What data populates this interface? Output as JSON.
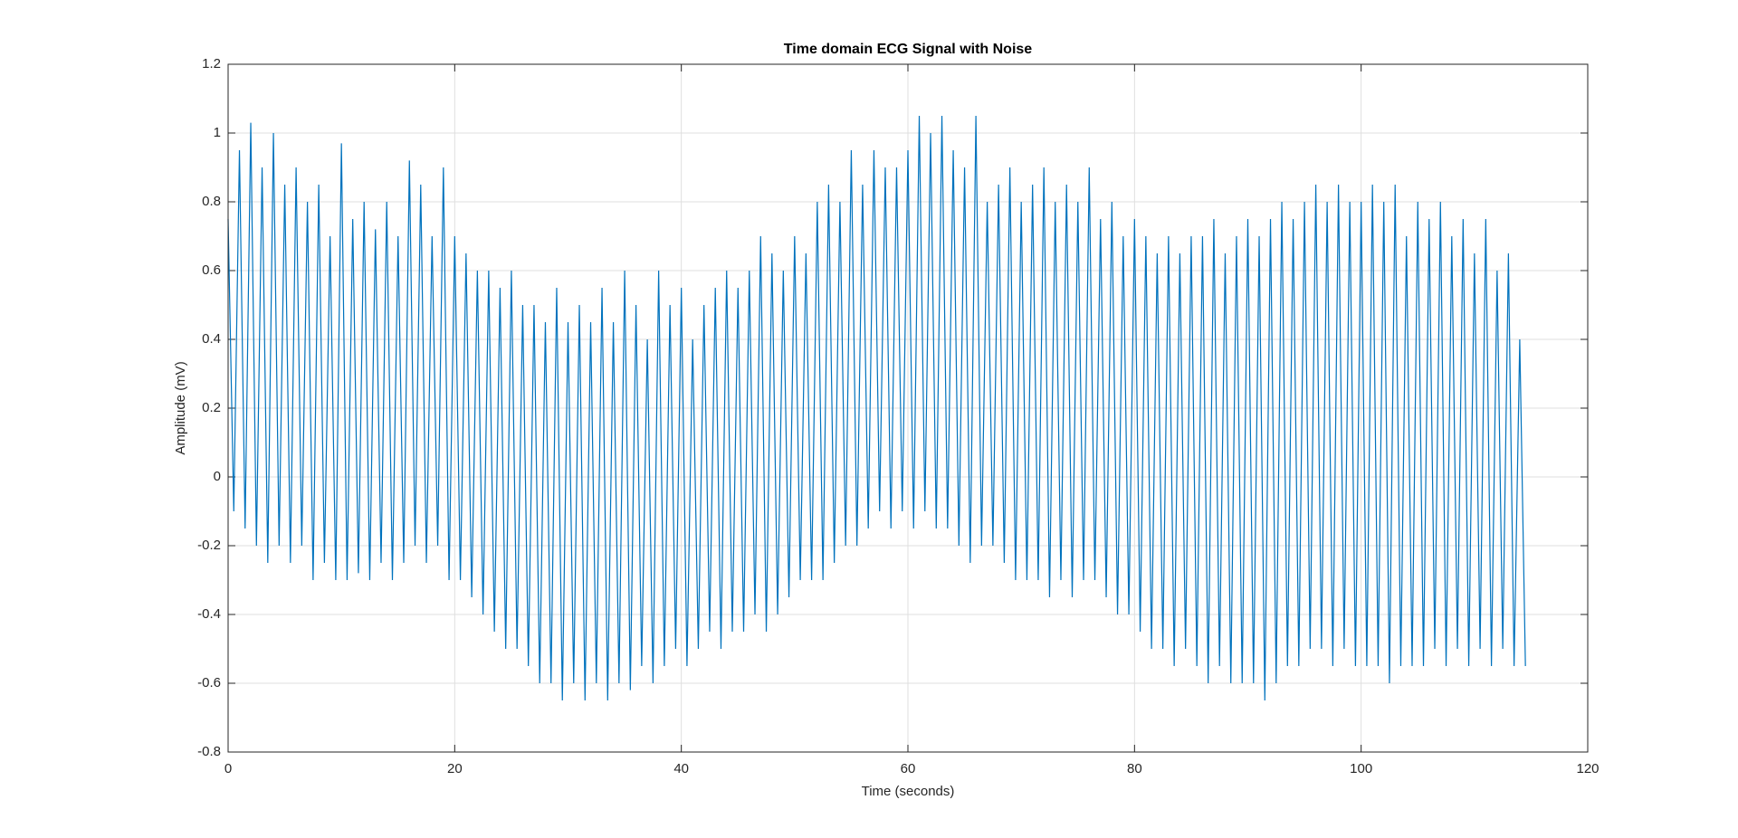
{
  "chart_data": {
    "type": "line",
    "title": "Time domain ECG Signal with Noise",
    "xlabel": "Time (seconds)",
    "ylabel": "Amplitude (mV)",
    "xlim": [
      0,
      120
    ],
    "xticks": [
      0,
      20,
      40,
      60,
      80,
      100,
      120
    ],
    "ylim": [
      -0.8,
      1.2
    ],
    "yticks": [
      -0.8,
      -0.6,
      -0.4,
      -0.2,
      0,
      0.2,
      0.4,
      0.6,
      0.8,
      1,
      1.2
    ],
    "grid": true,
    "x": [
      0,
      0.5,
      1,
      1.5,
      2,
      2.5,
      3,
      3.5,
      4,
      4.5,
      5,
      5.5,
      6,
      6.5,
      7,
      7.5,
      8,
      8.5,
      9,
      9.5,
      10,
      10.5,
      11,
      11.5,
      12,
      12.5,
      13,
      13.5,
      14,
      14.5,
      15,
      15.5,
      16,
      16.5,
      17,
      17.5,
      18,
      18.5,
      19,
      19.5,
      20,
      20.5,
      21,
      21.5,
      22,
      22.5,
      23,
      23.5,
      24,
      24.5,
      25,
      25.5,
      26,
      26.5,
      27,
      27.5,
      28,
      28.5,
      29,
      29.5,
      30,
      30.5,
      31,
      31.5,
      32,
      32.5,
      33,
      33.5,
      34,
      34.5,
      35,
      35.5,
      36,
      36.5,
      37,
      37.5,
      38,
      38.5,
      39,
      39.5,
      40,
      40.5,
      41,
      41.5,
      42,
      42.5,
      43,
      43.5,
      44,
      44.5,
      45,
      45.5,
      46,
      46.5,
      47,
      47.5,
      48,
      48.5,
      49,
      49.5,
      50,
      50.5,
      51,
      51.5,
      52,
      52.5,
      53,
      53.5,
      54,
      54.5,
      55,
      55.5,
      56,
      56.5,
      57,
      57.5,
      58,
      58.5,
      59,
      59.5,
      60,
      60.5,
      61,
      61.5,
      62,
      62.5,
      63,
      63.5,
      64,
      64.5,
      65,
      65.5,
      66,
      66.5,
      67,
      67.5,
      68,
      68.5,
      69,
      69.5,
      70,
      70.5,
      71,
      71.5,
      72,
      72.5,
      73,
      73.5,
      74,
      74.5,
      75,
      75.5,
      76,
      76.5,
      77,
      77.5,
      78,
      78.5,
      79,
      79.5,
      80,
      80.5,
      81,
      81.5,
      82,
      82.5,
      83,
      83.5,
      84,
      84.5,
      85,
      85.5,
      86,
      86.5,
      87,
      87.5,
      88,
      88.5,
      89,
      89.5,
      90,
      90.5,
      91,
      91.5,
      92,
      92.5,
      93,
      93.5,
      94,
      94.5,
      95,
      95.5,
      96,
      96.5,
      97,
      97.5,
      98,
      98.5,
      99,
      99.5,
      100,
      100.5,
      101,
      101.5,
      102,
      102.5,
      103,
      103.5,
      104,
      104.5,
      105,
      105.5,
      106,
      106.5,
      107,
      107.5,
      108,
      108.5,
      109,
      109.5,
      110,
      110.5,
      111,
      111.5,
      112,
      112.5,
      113,
      113.5,
      114,
      114.5
    ],
    "series": [
      {
        "color": "#0072bd",
        "values": [
          0.75,
          -0.1,
          0.95,
          -0.15,
          1.03,
          -0.2,
          0.9,
          -0.25,
          1.0,
          -0.2,
          0.85,
          -0.25,
          0.9,
          -0.2,
          0.8,
          -0.3,
          0.85,
          -0.25,
          0.7,
          -0.3,
          0.97,
          -0.3,
          0.75,
          -0.28,
          0.8,
          -0.3,
          0.72,
          -0.25,
          0.8,
          -0.3,
          0.7,
          -0.25,
          0.92,
          -0.2,
          0.85,
          -0.25,
          0.7,
          -0.2,
          0.9,
          -0.3,
          0.7,
          -0.3,
          0.65,
          -0.35,
          0.6,
          -0.4,
          0.6,
          -0.45,
          0.55,
          -0.5,
          0.6,
          -0.5,
          0.5,
          -0.55,
          0.5,
          -0.6,
          0.45,
          -0.6,
          0.55,
          -0.65,
          0.45,
          -0.6,
          0.5,
          -0.65,
          0.45,
          -0.6,
          0.55,
          -0.65,
          0.45,
          -0.6,
          0.6,
          -0.62,
          0.5,
          -0.55,
          0.4,
          -0.6,
          0.6,
          -0.55,
          0.5,
          -0.5,
          0.55,
          -0.55,
          0.4,
          -0.5,
          0.5,
          -0.45,
          0.55,
          -0.5,
          0.6,
          -0.45,
          0.55,
          -0.45,
          0.6,
          -0.4,
          0.7,
          -0.45,
          0.65,
          -0.4,
          0.6,
          -0.35,
          0.7,
          -0.3,
          0.65,
          -0.3,
          0.8,
          -0.3,
          0.85,
          -0.25,
          0.8,
          -0.2,
          0.95,
          -0.2,
          0.85,
          -0.15,
          0.95,
          -0.1,
          0.9,
          -0.15,
          0.9,
          -0.1,
          0.95,
          -0.15,
          1.05,
          -0.1,
          1.0,
          -0.15,
          1.05,
          -0.15,
          0.95,
          -0.2,
          0.9,
          -0.25,
          1.05,
          -0.2,
          0.8,
          -0.2,
          0.85,
          -0.25,
          0.9,
          -0.3,
          0.8,
          -0.3,
          0.85,
          -0.3,
          0.9,
          -0.35,
          0.8,
          -0.3,
          0.85,
          -0.35,
          0.8,
          -0.3,
          0.9,
          -0.3,
          0.75,
          -0.35,
          0.8,
          -0.4,
          0.7,
          -0.4,
          0.75,
          -0.45,
          0.7,
          -0.5,
          0.65,
          -0.5,
          0.7,
          -0.55,
          0.65,
          -0.5,
          0.7,
          -0.55,
          0.7,
          -0.6,
          0.75,
          -0.55,
          0.65,
          -0.6,
          0.7,
          -0.6,
          0.75,
          -0.6,
          0.7,
          -0.65,
          0.75,
          -0.6,
          0.8,
          -0.55,
          0.75,
          -0.55,
          0.8,
          -0.5,
          0.85,
          -0.5,
          0.8,
          -0.55,
          0.85,
          -0.5,
          0.8,
          -0.55,
          0.8,
          -0.55,
          0.85,
          -0.55,
          0.8,
          -0.6,
          0.85,
          -0.55,
          0.7,
          -0.55,
          0.8,
          -0.55,
          0.75,
          -0.5,
          0.8,
          -0.55,
          0.7,
          -0.5,
          0.75,
          -0.55,
          0.65,
          -0.5,
          0.75,
          -0.55,
          0.6,
          -0.5,
          0.65,
          -0.55,
          0.4,
          -0.55
        ]
      }
    ]
  }
}
